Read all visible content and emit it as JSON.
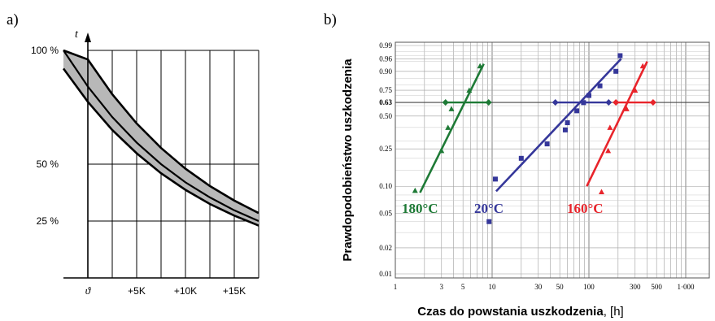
{
  "panels": [
    {
      "letter": "a)",
      "chart_data": {
        "type": "line",
        "y_axis_symbol": "t",
        "x_axis_origin_symbol": "ϑ",
        "x_ticks": [
          {
            "value": 0,
            "label": ""
          },
          {
            "value": 5,
            "label": "+5K"
          },
          {
            "value": 10,
            "label": "+10K"
          },
          {
            "value": 15,
            "label": "+15K"
          }
        ],
        "y_ticks": [
          {
            "value": 100,
            "label": "100 %"
          },
          {
            "value": 50,
            "label": "50 %"
          },
          {
            "value": 25,
            "label": "25 %"
          }
        ],
        "xlim": [
          -2.5,
          17.5
        ],
        "ylim": [
          0,
          100
        ],
        "grid": true,
        "band": {
          "x": [
            -2.5,
            0,
            2.5,
            5,
            7.5,
            10,
            12.5,
            15,
            17.5
          ],
          "center": [
            100,
            84.1,
            70.7,
            59.5,
            50,
            42,
            35.4,
            29.7,
            25
          ],
          "upper": [
            100,
            96,
            80.7,
            67.9,
            57.1,
            48,
            40.4,
            34,
            28.5
          ],
          "lower": [
            92,
            77.4,
            65,
            54.8,
            46,
            38.7,
            32.5,
            27.4,
            23
          ]
        }
      }
    },
    {
      "letter": "b)",
      "chart_data": {
        "type": "scatter",
        "xlabel": "Czas do powstania uszkodzenia, [h]",
        "xlabel_bold_part": "Czas do powstania uszkodzenia",
        "xlabel_unit_part": ", [h]",
        "ylabel": "Prawdopodobieństwo uszkodzenia",
        "x_scale": "log",
        "y_scale": "weibull",
        "xlim": [
          1,
          1000
        ],
        "ylim": [
          0.007,
          0.99
        ],
        "x_tick_labels": [
          {
            "value": 1,
            "label": "1"
          },
          {
            "value": 3,
            "label": "3"
          },
          {
            "value": 5,
            "label": "5"
          },
          {
            "value": 10,
            "label": "10"
          },
          {
            "value": 30,
            "label": "30"
          },
          {
            "value": 50,
            "label": "50"
          },
          {
            "value": 100,
            "label": "100"
          },
          {
            "value": 300,
            "label": "300"
          },
          {
            "value": 500,
            "label": "500"
          },
          {
            "value": 1000,
            "label": "1·000"
          }
        ],
        "y_tick_labels": [
          {
            "value": 0.99,
            "label": "0.99"
          },
          {
            "value": 0.96,
            "label": "0.96"
          },
          {
            "value": 0.9,
            "label": "0.90"
          },
          {
            "value": 0.75,
            "label": "0.75"
          },
          {
            "value": 0.632,
            "label": "0.63"
          },
          {
            "value": 0.5,
            "label": "0.50"
          },
          {
            "value": 0.25,
            "label": "0.25"
          },
          {
            "value": 0.1,
            "label": "0.10"
          },
          {
            "value": 0.05,
            "label": "0.05"
          },
          {
            "value": 0.02,
            "label": "0.02"
          },
          {
            "value": 0.01,
            "label": "0.01"
          }
        ],
        "y_gridlines": [
          0.99,
          0.96,
          0.9,
          0.75,
          0.632,
          0.5,
          0.25,
          0.1,
          0.05,
          0.02,
          0.01
        ],
        "x_gridlines": [
          1,
          2,
          3,
          4,
          5,
          6,
          7,
          8,
          9,
          10,
          20,
          30,
          40,
          50,
          60,
          70,
          80,
          90,
          100,
          200,
          300,
          400,
          500,
          600,
          700,
          800,
          900,
          1000
        ],
        "grid": true,
        "series": [
          {
            "label": "180°C",
            "color": "#1e7a36",
            "marker": "triangle",
            "points": [
              {
                "x": 1.6,
                "y": 0.09
              },
              {
                "x": 3,
                "y": 0.24
              },
              {
                "x": 3.5,
                "y": 0.4
              },
              {
                "x": 3.8,
                "y": 0.57
              },
              {
                "x": 5.8,
                "y": 0.75
              },
              {
                "x": 7.5,
                "y": 0.93
              }
            ],
            "fit_line": [
              {
                "x": 1.8,
                "y": 0.085
              },
              {
                "x": 8.2,
                "y": 0.94
              }
            ],
            "interval": {
              "y": 0.632,
              "x": [
                3.3,
                9.2
              ]
            }
          },
          {
            "label": "20°C",
            "color": "#35379a",
            "marker": "square",
            "points": [
              {
                "x": 9.3,
                "y": 0.04
              },
              {
                "x": 10.8,
                "y": 0.12
              },
              {
                "x": 20,
                "y": 0.2
              },
              {
                "x": 37,
                "y": 0.28
              },
              {
                "x": 57,
                "y": 0.38
              },
              {
                "x": 60,
                "y": 0.44
              },
              {
                "x": 75,
                "y": 0.55
              },
              {
                "x": 88,
                "y": 0.63
              },
              {
                "x": 100,
                "y": 0.7
              },
              {
                "x": 130,
                "y": 0.79
              },
              {
                "x": 190,
                "y": 0.9
              },
              {
                "x": 210,
                "y": 0.97
              }
            ],
            "fit_line": [
              {
                "x": 11,
                "y": 0.088
              },
              {
                "x": 215,
                "y": 0.96
              }
            ],
            "interval": {
              "y": 0.632,
              "x": [
                45,
                160
              ]
            }
          },
          {
            "label": "160°C",
            "color": "#e8242b",
            "marker": "triangle",
            "points": [
              {
                "x": 135,
                "y": 0.087
              },
              {
                "x": 158,
                "y": 0.24
              },
              {
                "x": 165,
                "y": 0.4
              },
              {
                "x": 245,
                "y": 0.57
              },
              {
                "x": 300,
                "y": 0.75
              },
              {
                "x": 360,
                "y": 0.93
              }
            ],
            "fit_line": [
              {
                "x": 95,
                "y": 0.1
              },
              {
                "x": 400,
                "y": 0.95
              }
            ],
            "interval": {
              "y": 0.632,
              "x": [
                190,
                460
              ]
            }
          }
        ]
      }
    }
  ],
  "colors": {
    "grid": "#9e9e9e",
    "axis": "#000000",
    "band_fill": "#b8b8b8"
  }
}
